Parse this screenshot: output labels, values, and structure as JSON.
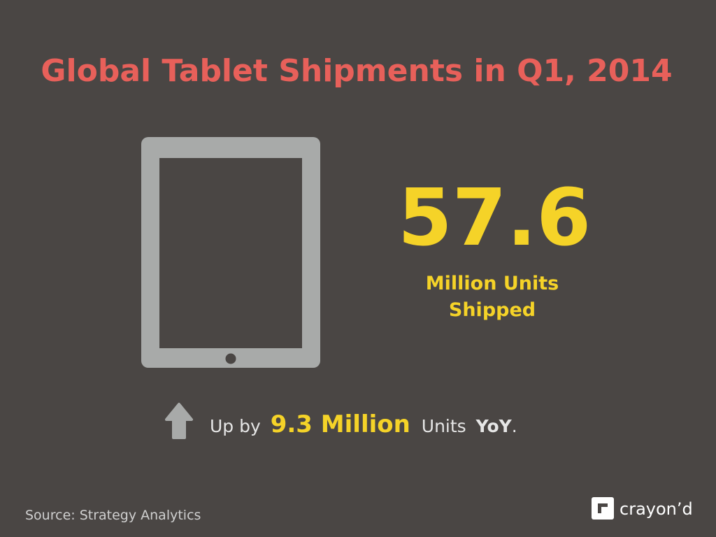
{
  "title": "Global Tablet Shipments in Q1, 2014",
  "headline": {
    "number": "57.6",
    "caption": [
      "Million Units",
      "Shipped"
    ]
  },
  "change": {
    "lead": "Up by",
    "amount": "9.3 Million",
    "unit": "Units",
    "period": "YoY",
    "end": "."
  },
  "source": "Source: Strategy Analytics",
  "logo": "crayon’d"
}
